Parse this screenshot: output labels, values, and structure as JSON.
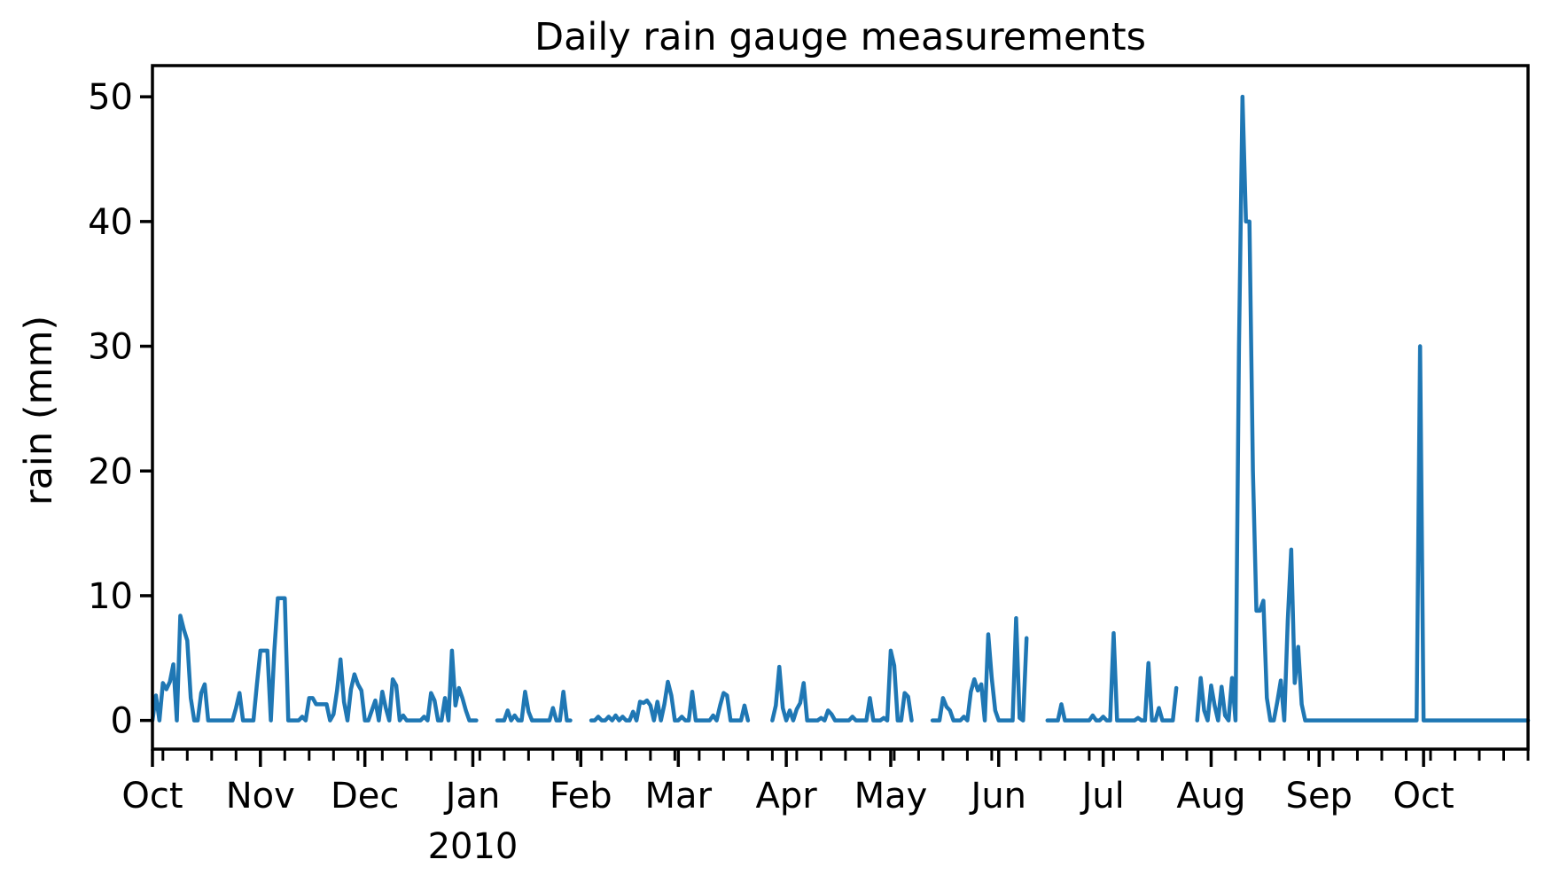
{
  "chart_data": {
    "type": "line",
    "title": "Daily rain gauge measurements",
    "xlabel": "",
    "ylabel": "rain (mm)",
    "xlim": [
      "2009-10-01",
      "2010-10-31"
    ],
    "ylim": [
      -2.3,
      52.5
    ],
    "yticks": [
      0,
      10,
      20,
      30,
      40,
      50
    ],
    "xticks": [
      {
        "date": "2009-10-01",
        "label": "Oct"
      },
      {
        "date": "2009-11-01",
        "label": "Nov"
      },
      {
        "date": "2009-12-01",
        "label": "Dec"
      },
      {
        "date": "2010-01-01",
        "label": "Jan"
      },
      {
        "date": "2010-02-01",
        "label": "Feb"
      },
      {
        "date": "2010-03-01",
        "label": "Mar"
      },
      {
        "date": "2010-04-01",
        "label": "Apr"
      },
      {
        "date": "2010-05-01",
        "label": "May"
      },
      {
        "date": "2010-06-01",
        "label": "Jun"
      },
      {
        "date": "2010-07-01",
        "label": "Jul"
      },
      {
        "date": "2010-08-01",
        "label": "Aug"
      },
      {
        "date": "2010-09-01",
        "label": "Sep"
      },
      {
        "date": "2010-10-01",
        "label": "Oct"
      }
    ],
    "year_label": {
      "date": "2010-01-01",
      "label": "2010"
    },
    "grid": false,
    "color": "#1f77b4",
    "series": [
      {
        "segments": [
          {
            "start": "2009-10-01",
            "end": "2010-01-02",
            "rain": [
              {
                "date": "2009-10-02",
                "value": 2.0
              },
              {
                "date": "2009-10-04",
                "value": 3.0
              },
              {
                "date": "2009-10-05",
                "value": 2.5
              },
              {
                "date": "2009-10-06",
                "value": 3.1
              },
              {
                "date": "2009-10-07",
                "value": 4.5
              },
              {
                "date": "2009-10-09",
                "value": 8.4
              },
              {
                "date": "2009-10-10",
                "value": 7.3
              },
              {
                "date": "2009-10-11",
                "value": 6.4
              },
              {
                "date": "2009-10-12",
                "value": 1.8
              },
              {
                "date": "2009-10-15",
                "value": 2.2
              },
              {
                "date": "2009-10-16",
                "value": 2.9
              },
              {
                "date": "2009-10-25",
                "value": 1.0
              },
              {
                "date": "2009-10-26",
                "value": 2.2
              },
              {
                "date": "2009-10-31",
                "value": 2.9
              },
              {
                "date": "2009-11-01",
                "value": 5.6
              },
              {
                "date": "2009-11-02",
                "value": 5.6
              },
              {
                "date": "2009-11-03",
                "value": 5.6
              },
              {
                "date": "2009-11-05",
                "value": 5.6
              },
              {
                "date": "2009-11-06",
                "value": 9.8
              },
              {
                "date": "2009-11-07",
                "value": 9.8
              },
              {
                "date": "2009-11-08",
                "value": 9.8
              },
              {
                "date": "2009-11-13",
                "value": 0.3
              },
              {
                "date": "2009-11-15",
                "value": 1.8
              },
              {
                "date": "2009-11-16",
                "value": 1.8
              },
              {
                "date": "2009-11-17",
                "value": 1.3
              },
              {
                "date": "2009-11-18",
                "value": 1.3
              },
              {
                "date": "2009-11-19",
                "value": 1.3
              },
              {
                "date": "2009-11-20",
                "value": 1.3
              },
              {
                "date": "2009-11-22",
                "value": 0.5
              },
              {
                "date": "2009-11-23",
                "value": 2.4
              },
              {
                "date": "2009-11-24",
                "value": 4.9
              },
              {
                "date": "2009-11-25",
                "value": 1.5
              },
              {
                "date": "2009-11-27",
                "value": 2.5
              },
              {
                "date": "2009-11-28",
                "value": 3.7
              },
              {
                "date": "2009-11-29",
                "value": 2.9
              },
              {
                "date": "2009-11-30",
                "value": 2.4
              },
              {
                "date": "2009-12-03",
                "value": 0.8
              },
              {
                "date": "2009-12-04",
                "value": 1.6
              },
              {
                "date": "2009-12-06",
                "value": 2.3
              },
              {
                "date": "2009-12-07",
                "value": 1.0
              },
              {
                "date": "2009-12-09",
                "value": 3.3
              },
              {
                "date": "2009-12-10",
                "value": 2.8
              },
              {
                "date": "2009-12-12",
                "value": 0.4
              },
              {
                "date": "2009-12-18",
                "value": 0.3
              },
              {
                "date": "2009-12-20",
                "value": 2.2
              },
              {
                "date": "2009-12-21",
                "value": 1.6
              },
              {
                "date": "2009-12-24",
                "value": 1.8
              },
              {
                "date": "2009-12-26",
                "value": 5.6
              },
              {
                "date": "2009-12-27",
                "value": 1.2
              },
              {
                "date": "2009-12-28",
                "value": 2.6
              },
              {
                "date": "2009-12-29",
                "value": 1.8
              },
              {
                "date": "2009-12-30",
                "value": 0.8
              }
            ]
          },
          {
            "start": "2010-01-08",
            "end": "2010-01-29",
            "rain": [
              {
                "date": "2010-01-11",
                "value": 0.8
              },
              {
                "date": "2010-01-13",
                "value": 0.4
              },
              {
                "date": "2010-01-16",
                "value": 2.3
              },
              {
                "date": "2010-01-17",
                "value": 0.7
              },
              {
                "date": "2010-01-24",
                "value": 1.0
              },
              {
                "date": "2010-01-27",
                "value": 2.3
              }
            ]
          },
          {
            "start": "2010-02-04",
            "end": "2010-03-21",
            "rain": [
              {
                "date": "2010-02-06",
                "value": 0.3
              },
              {
                "date": "2010-02-09",
                "value": 0.3
              },
              {
                "date": "2010-02-11",
                "value": 0.4
              },
              {
                "date": "2010-02-13",
                "value": 0.3
              },
              {
                "date": "2010-02-16",
                "value": 0.7
              },
              {
                "date": "2010-02-18",
                "value": 1.5
              },
              {
                "date": "2010-02-19",
                "value": 1.4
              },
              {
                "date": "2010-02-20",
                "value": 1.6
              },
              {
                "date": "2010-02-21",
                "value": 1.2
              },
              {
                "date": "2010-02-23",
                "value": 1.5
              },
              {
                "date": "2010-02-25",
                "value": 1.3
              },
              {
                "date": "2010-02-26",
                "value": 3.1
              },
              {
                "date": "2010-02-27",
                "value": 2.0
              },
              {
                "date": "2010-03-02",
                "value": 0.3
              },
              {
                "date": "2010-03-05",
                "value": 2.3
              },
              {
                "date": "2010-03-11",
                "value": 0.4
              },
              {
                "date": "2010-03-13",
                "value": 1.2
              },
              {
                "date": "2010-03-14",
                "value": 2.2
              },
              {
                "date": "2010-03-15",
                "value": 2.0
              },
              {
                "date": "2010-03-20",
                "value": 1.2
              }
            ]
          },
          {
            "start": "2010-03-28",
            "end": "2010-05-07",
            "rain": [
              {
                "date": "2010-03-29",
                "value": 1.2
              },
              {
                "date": "2010-03-30",
                "value": 4.3
              },
              {
                "date": "2010-03-31",
                "value": 1.0
              },
              {
                "date": "2010-04-02",
                "value": 0.8
              },
              {
                "date": "2010-04-04",
                "value": 0.9
              },
              {
                "date": "2010-04-05",
                "value": 1.4
              },
              {
                "date": "2010-04-06",
                "value": 3.0
              },
              {
                "date": "2010-04-11",
                "value": 0.2
              },
              {
                "date": "2010-04-13",
                "value": 0.8
              },
              {
                "date": "2010-04-14",
                "value": 0.5
              },
              {
                "date": "2010-04-20",
                "value": 0.3
              },
              {
                "date": "2010-04-25",
                "value": 1.8
              },
              {
                "date": "2010-04-29",
                "value": 0.2
              },
              {
                "date": "2010-05-01",
                "value": 5.6
              },
              {
                "date": "2010-05-02",
                "value": 4.4
              },
              {
                "date": "2010-05-05",
                "value": 2.2
              },
              {
                "date": "2010-05-06",
                "value": 1.9
              }
            ]
          },
          {
            "start": "2010-05-13",
            "end": "2010-06-09",
            "rain": [
              {
                "date": "2010-05-16",
                "value": 1.8
              },
              {
                "date": "2010-05-17",
                "value": 1.1
              },
              {
                "date": "2010-05-18",
                "value": 0.8
              },
              {
                "date": "2010-05-22",
                "value": 0.3
              },
              {
                "date": "2010-05-24",
                "value": 2.3
              },
              {
                "date": "2010-05-25",
                "value": 3.3
              },
              {
                "date": "2010-05-26",
                "value": 2.4
              },
              {
                "date": "2010-05-27",
                "value": 2.9
              },
              {
                "date": "2010-05-29",
                "value": 6.9
              },
              {
                "date": "2010-05-30",
                "value": 3.4
              },
              {
                "date": "2010-05-31",
                "value": 0.8
              },
              {
                "date": "2010-06-06",
                "value": 8.2
              },
              {
                "date": "2010-06-07",
                "value": 0.2
              },
              {
                "date": "2010-06-09",
                "value": 6.6
              }
            ]
          },
          {
            "start": "2010-06-15",
            "end": "2010-07-22",
            "rain": [
              {
                "date": "2010-06-19",
                "value": 1.3
              },
              {
                "date": "2010-06-28",
                "value": 0.4
              },
              {
                "date": "2010-07-01",
                "value": 0.3
              },
              {
                "date": "2010-07-04",
                "value": 7.0
              },
              {
                "date": "2010-07-11",
                "value": 0.2
              },
              {
                "date": "2010-07-14",
                "value": 4.6
              },
              {
                "date": "2010-07-17",
                "value": 1.0
              },
              {
                "date": "2010-07-22",
                "value": 2.6
              }
            ]
          },
          {
            "start": "2010-07-28",
            "end": "2010-10-31",
            "rain": [
              {
                "date": "2010-07-29",
                "value": 3.4
              },
              {
                "date": "2010-07-30",
                "value": 0.8
              },
              {
                "date": "2010-08-01",
                "value": 2.8
              },
              {
                "date": "2010-08-02",
                "value": 1.2
              },
              {
                "date": "2010-08-04",
                "value": 2.7
              },
              {
                "date": "2010-08-05",
                "value": 0.4
              },
              {
                "date": "2010-08-07",
                "value": 3.4
              },
              {
                "date": "2010-08-09",
                "value": 30.0
              },
              {
                "date": "2010-08-10",
                "value": 50.0
              },
              {
                "date": "2010-08-11",
                "value": 40.0
              },
              {
                "date": "2010-08-12",
                "value": 40.0
              },
              {
                "date": "2010-08-13",
                "value": 20.0
              },
              {
                "date": "2010-08-14",
                "value": 8.8
              },
              {
                "date": "2010-08-15",
                "value": 8.8
              },
              {
                "date": "2010-08-16",
                "value": 9.6
              },
              {
                "date": "2010-08-17",
                "value": 1.8
              },
              {
                "date": "2010-08-20",
                "value": 1.5
              },
              {
                "date": "2010-08-21",
                "value": 3.2
              },
              {
                "date": "2010-08-23",
                "value": 8.0
              },
              {
                "date": "2010-08-24",
                "value": 13.7
              },
              {
                "date": "2010-08-25",
                "value": 3.0
              },
              {
                "date": "2010-08-26",
                "value": 5.9
              },
              {
                "date": "2010-08-27",
                "value": 1.3
              },
              {
                "date": "2010-09-30",
                "value": 30.0
              }
            ]
          }
        ]
      }
    ]
  }
}
